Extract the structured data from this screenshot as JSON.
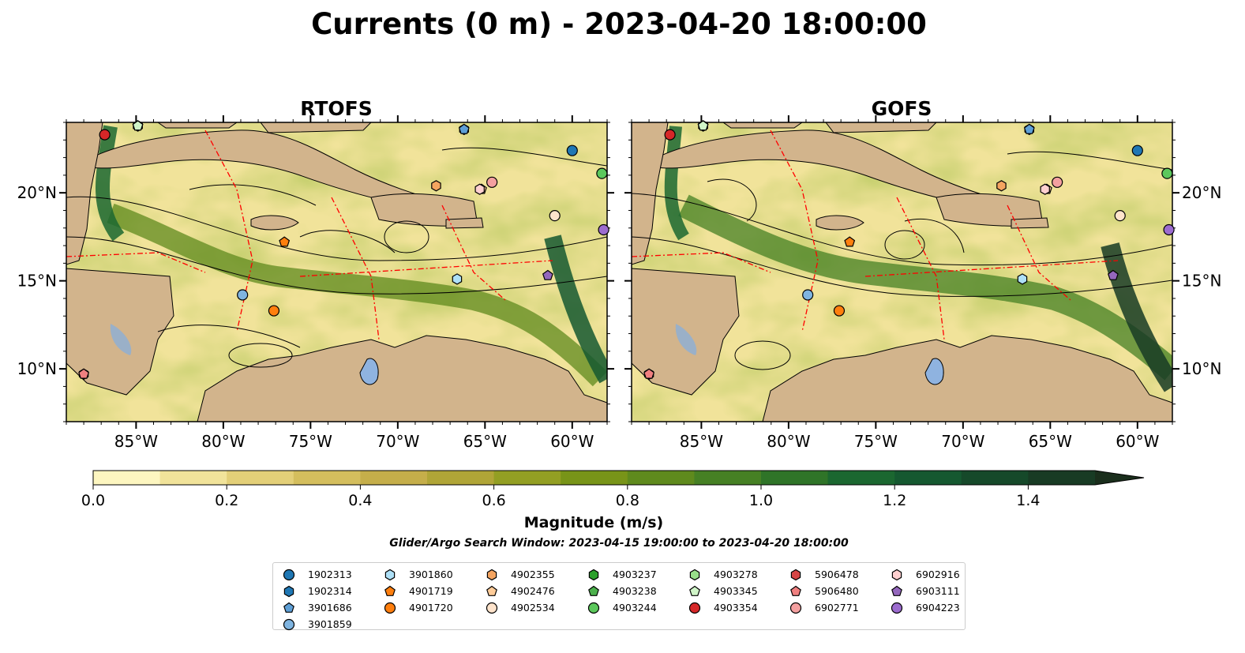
{
  "figure": {
    "title": "Currents (0 m) - 2023-04-20 18:00:00",
    "panels": [
      {
        "title": "RTOFS"
      },
      {
        "title": "GOFS"
      }
    ],
    "lon_ticks": [
      "85°W",
      "80°W",
      "75°W",
      "70°W",
      "65°W",
      "60°W"
    ],
    "lat_ticks": [
      "20°N",
      "15°N",
      "10°N"
    ],
    "colorbar": {
      "label": "Magnitude (m/s)",
      "ticks": [
        "0.0",
        "0.2",
        "0.4",
        "0.6",
        "0.8",
        "1.0",
        "1.2",
        "1.4"
      ],
      "min": 0.0,
      "max": 1.5,
      "step": 0.1,
      "extend": "max",
      "colors": [
        "#fdf6c0",
        "#f1e39a",
        "#e3cf78",
        "#d4be5d",
        "#c5ae4a",
        "#b0a537",
        "#939f23",
        "#789418",
        "#5f8a1d",
        "#468024",
        "#2f7428",
        "#1b6730",
        "#155830",
        "#16492a",
        "#183b24",
        "#1a2e1c"
      ]
    },
    "search_window": "Glider/Argo Search Window: 2023-04-15 19:00:00 to 2023-04-20 18:00:00",
    "land_color": "#d2b48c",
    "lake_color": "#8fb3e0",
    "eez_line_color": "#ff0000"
  },
  "chart_data": {
    "type": "map",
    "extent": {
      "lon": [
        -89,
        -58
      ],
      "lat": [
        7,
        24
      ]
    },
    "floats": [
      {
        "id": "1902313",
        "marker": "circle",
        "color": "#1f77b4",
        "lon": -60.0,
        "lat": 22.4
      },
      {
        "id": "1902314",
        "marker": "hexagon",
        "color": "#1f77b4",
        "lon": -66.2,
        "lat": 23.6
      },
      {
        "id": "3901686",
        "marker": "pentagon",
        "color": "#5e9fd6",
        "lon": -66.2,
        "lat": 23.6
      },
      {
        "id": "3901859",
        "marker": "circle",
        "color": "#7fb4e0",
        "lon": -78.9,
        "lat": 14.2
      },
      {
        "id": "3901860",
        "marker": "hexagon",
        "color": "#aee0f7",
        "lon": -66.6,
        "lat": 15.1
      },
      {
        "id": "4901719",
        "marker": "pentagon",
        "color": "#ff7f0e",
        "lon": -76.5,
        "lat": 17.2
      },
      {
        "id": "4901720",
        "marker": "circle",
        "color": "#ff7f0e",
        "lon": -77.1,
        "lat": 13.3
      },
      {
        "id": "4902355",
        "marker": "hexagon",
        "color": "#f4a460",
        "lon": -67.8,
        "lat": 20.4
      },
      {
        "id": "4902476",
        "marker": "pentagon",
        "color": "#ffcc99",
        "lon": -65.2,
        "lat": 20.2
      },
      {
        "id": "4902534",
        "marker": "circle",
        "color": "#ffe4cc",
        "lon": -61.0,
        "lat": 18.7
      },
      {
        "id": "4903237",
        "marker": "hexagon",
        "color": "#2ca02c",
        "lon": -84.9,
        "lat": 23.8
      },
      {
        "id": "4903238",
        "marker": "pentagon",
        "color": "#4cb04c",
        "lon": -84.9,
        "lat": 23.8
      },
      {
        "id": "4903244",
        "marker": "circle",
        "color": "#5cc85c",
        "lon": -58.3,
        "lat": 21.1
      },
      {
        "id": "4903278",
        "marker": "hexagon",
        "color": "#98df8a",
        "lon": -84.9,
        "lat": 23.8
      },
      {
        "id": "4903345",
        "marker": "pentagon",
        "color": "#d0f5c8",
        "lon": -84.9,
        "lat": 23.8
      },
      {
        "id": "4903354",
        "marker": "circle",
        "color": "#d62728",
        "lon": -86.8,
        "lat": 23.3
      },
      {
        "id": "5906478",
        "marker": "hexagon",
        "color": "#d64545",
        "lon": -88.0,
        "lat": 9.7
      },
      {
        "id": "5906480",
        "marker": "pentagon",
        "color": "#f08080",
        "lon": -88.0,
        "lat": 9.7
      },
      {
        "id": "6902771",
        "marker": "circle",
        "color": "#f4a0a0",
        "lon": -64.6,
        "lat": 20.6
      },
      {
        "id": "6902916",
        "marker": "hexagon",
        "color": "#ffd0d0",
        "lon": -65.3,
        "lat": 20.2
      },
      {
        "id": "6903111",
        "marker": "pentagon",
        "color": "#9467bd",
        "lon": -61.4,
        "lat": 15.3
      },
      {
        "id": "6904223",
        "marker": "circle",
        "color": "#9c6ccf",
        "lon": -58.2,
        "lat": 17.9
      }
    ]
  }
}
